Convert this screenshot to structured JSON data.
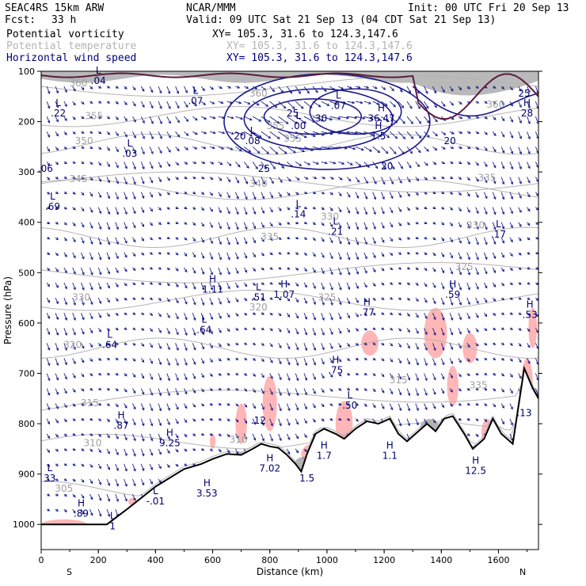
{
  "header": {
    "model": "SEAC4RS 15km ARW",
    "fcst_label": "Fcst:",
    "fcst_value": "33 h",
    "org": "NCAR/MMM",
    "init": "Init: 00 UTC Fri 20 Sep 13",
    "valid": "Valid: 09 UTC Sat 21 Sep 13 (04 CDT Sat 21 Sep 13)"
  },
  "fields": [
    {
      "name": "Potential vorticity",
      "xy": "XY= 105.3, 31.6 to 124.3,147.6",
      "color": "#000000"
    },
    {
      "name": "Potential temperature",
      "xy": "XY= 105.3, 31.6 to 124.3,147.6",
      "color": "#b4b4b4"
    },
    {
      "name": "Horizontal wind speed",
      "xy": "XY= 105.3, 31.6 to 124.3,147.6",
      "color": "#000080"
    }
  ],
  "chart_data": {
    "type": "cross-section",
    "xlabel": "Distance (km)",
    "ylabel": "Pressure (hPa)",
    "xlim": [
      0,
      1740
    ],
    "ylim": [
      1050,
      100
    ],
    "x_ticks": [
      0,
      200,
      400,
      600,
      800,
      1000,
      1200,
      1400,
      1600
    ],
    "x_tick_labels": [
      "0",
      "200",
      "400",
      "600",
      "800",
      "1000",
      "1200",
      "1400",
      "1600"
    ],
    "y_ticks": [
      100,
      200,
      300,
      400,
      500,
      600,
      700,
      800,
      900,
      1000
    ],
    "y_tick_labels": [
      "100",
      "200",
      "300",
      "400",
      "500",
      "600",
      "700",
      "800",
      "900",
      "1000"
    ],
    "endpoint_labels": {
      "left": "S",
      "right": "N"
    },
    "colors": {
      "wind": "#1e1e8c",
      "theta": "#b4b4b4",
      "pv_low": "#ffb6b6",
      "pv_high": "#808080",
      "terrain": "#000000",
      "pv2": "#5a1e3c"
    },
    "terrain": [
      [
        0,
        1000
      ],
      [
        230,
        1000
      ],
      [
        300,
        970
      ],
      [
        400,
        925
      ],
      [
        500,
        890
      ],
      [
        560,
        880
      ],
      [
        600,
        870
      ],
      [
        650,
        860
      ],
      [
        700,
        862
      ],
      [
        740,
        850
      ],
      [
        770,
        840
      ],
      [
        800,
        845
      ],
      [
        830,
        848
      ],
      [
        860,
        862
      ],
      [
        890,
        880
      ],
      [
        910,
        895
      ],
      [
        930,
        860
      ],
      [
        960,
        820
      ],
      [
        990,
        810
      ],
      [
        1030,
        820
      ],
      [
        1060,
        830
      ],
      [
        1100,
        810
      ],
      [
        1140,
        795
      ],
      [
        1180,
        800
      ],
      [
        1220,
        790
      ],
      [
        1250,
        820
      ],
      [
        1280,
        835
      ],
      [
        1310,
        820
      ],
      [
        1350,
        800
      ],
      [
        1380,
        815
      ],
      [
        1410,
        790
      ],
      [
        1440,
        785
      ],
      [
        1480,
        820
      ],
      [
        1510,
        850
      ],
      [
        1550,
        830
      ],
      [
        1580,
        790
      ],
      [
        1610,
        820
      ],
      [
        1650,
        840
      ],
      [
        1690,
        690
      ],
      [
        1720,
        730
      ],
      [
        1740,
        750
      ]
    ],
    "theta_labels": [
      {
        "v": "360",
        "x": 130,
        "p": 130
      },
      {
        "v": "355",
        "x": 185,
        "p": 195
      },
      {
        "v": "350",
        "x": 150,
        "p": 245
      },
      {
        "v": "345",
        "x": 130,
        "p": 320
      },
      {
        "v": "340",
        "x": 760,
        "p": 330
      },
      {
        "v": "335",
        "x": 800,
        "p": 435
      },
      {
        "v": "330",
        "x": 140,
        "p": 555
      },
      {
        "v": "325",
        "x": 1000,
        "p": 555
      },
      {
        "v": "320",
        "x": 110,
        "p": 650
      },
      {
        "v": "315",
        "x": 170,
        "p": 765
      },
      {
        "v": "310",
        "x": 180,
        "p": 845
      },
      {
        "v": "305",
        "x": 80,
        "p": 935
      },
      {
        "v": "360",
        "x": 760,
        "p": 150
      },
      {
        "v": "355",
        "x": 820,
        "p": 215
      },
      {
        "v": "335",
        "x": 1560,
        "p": 318
      },
      {
        "v": "330",
        "x": 1520,
        "p": 412
      },
      {
        "v": "325",
        "x": 1480,
        "p": 495
      },
      {
        "v": "320",
        "x": 760,
        "p": 575
      },
      {
        "v": "315",
        "x": 1250,
        "p": 720
      },
      {
        "v": "310",
        "x": 690,
        "p": 838
      },
      {
        "v": "360",
        "x": 1590,
        "p": 172
      },
      {
        "v": "355",
        "x": 880,
        "p": 240
      },
      {
        "v": "330",
        "x": 1010,
        "p": 395
      },
      {
        "v": "335",
        "x": 1530,
        "p": 730
      }
    ],
    "wind_labels": [
      {
        "v": "25",
        "x": 880,
        "p": 190
      },
      {
        "v": "30",
        "x": 980,
        "p": 200
      },
      {
        "v": "20",
        "x": 695,
        "p": 235
      },
      {
        "v": "25",
        "x": 780,
        "p": 300
      },
      {
        "v": "20",
        "x": 1210,
        "p": 295
      },
      {
        "v": "20",
        "x": 1430,
        "p": 245
      },
      {
        "v": "25",
        "x": 1690,
        "p": 150
      }
    ],
    "pv_extrema": [
      {
        "t": "L",
        "v": ".04",
        "x": 200,
        "p": 125
      },
      {
        "t": "L",
        "v": ".22",
        "x": 60,
        "p": 190
      },
      {
        "t": "L",
        "v": ".07",
        "x": 540,
        "p": 165
      },
      {
        "t": "L",
        "v": ".08",
        "x": 740,
        "p": 245
      },
      {
        "t": "L",
        "v": ".00",
        "x": 900,
        "p": 215
      },
      {
        "t": "L",
        "v": ".07",
        "x": 1040,
        "p": 175
      },
      {
        "t": "H",
        "v": "36.47",
        "x": 1190,
        "p": 200
      },
      {
        "t": "H",
        "v": "1.5",
        "x": 1180,
        "p": 235
      },
      {
        "t": "L",
        "v": ".03",
        "x": 310,
        "p": 270
      },
      {
        "t": "",
        "v": ".06",
        "x": 15,
        "p": 300
      },
      {
        "t": "L",
        "v": ".69",
        "x": 40,
        "p": 375
      },
      {
        "t": "L",
        "v": ".14",
        "x": 900,
        "p": 390
      },
      {
        "t": "L",
        "v": ".21",
        "x": 1030,
        "p": 425
      },
      {
        "t": "L",
        "v": ".17",
        "x": 1600,
        "p": 430
      },
      {
        "t": "H",
        "v": "1.11",
        "x": 600,
        "p": 540
      },
      {
        "t": "H",
        "v": "1.07",
        "x": 850,
        "p": 550
      },
      {
        "t": "L",
        "v": ".51",
        "x": 760,
        "p": 555
      },
      {
        "t": "H",
        "v": ".59",
        "x": 1440,
        "p": 550
      },
      {
        "t": "H",
        "v": ".77",
        "x": 1140,
        "p": 585
      },
      {
        "t": "H",
        "v": ".53",
        "x": 1710,
        "p": 590
      },
      {
        "t": "L",
        "v": ".64",
        "x": 240,
        "p": 650
      },
      {
        "t": "L",
        "v": ".64",
        "x": 570,
        "p": 620
      },
      {
        "t": "H",
        "v": ".75",
        "x": 1030,
        "p": 700
      },
      {
        "t": "L",
        "v": ".50",
        "x": 1080,
        "p": 770
      },
      {
        "t": "H",
        "v": ".87",
        "x": 280,
        "p": 810
      },
      {
        "t": "H",
        "v": "9.25",
        "x": 450,
        "p": 845
      },
      {
        "t": "",
        "v": ".12",
        "x": 760,
        "p": 800
      },
      {
        "t": "",
        "v": ".13",
        "x": 1690,
        "p": 785
      },
      {
        "t": "L",
        "v": "33",
        "x": 30,
        "p": 915
      },
      {
        "t": "H",
        "v": ".89",
        "x": 140,
        "p": 985
      },
      {
        "t": "L",
        "v": "-.01",
        "x": 400,
        "p": 960
      },
      {
        "t": "H",
        "v": "3.53",
        "x": 580,
        "p": 945
      },
      {
        "t": "H",
        "v": "7.02",
        "x": 800,
        "p": 895
      },
      {
        "t": "",
        "v": "1.5",
        "x": 930,
        "p": 915
      },
      {
        "t": "H",
        "v": "1.7",
        "x": 990,
        "p": 870
      },
      {
        "t": "H",
        "v": "1.1",
        "x": 1220,
        "p": 870
      },
      {
        "t": "H",
        "v": "12.5",
        "x": 1520,
        "p": 900
      },
      {
        "t": "L",
        "v": "1",
        "x": 250,
        "p": 1010
      },
      {
        "t": "H",
        "v": "28",
        "x": 1700,
        "p": 190
      }
    ]
  }
}
